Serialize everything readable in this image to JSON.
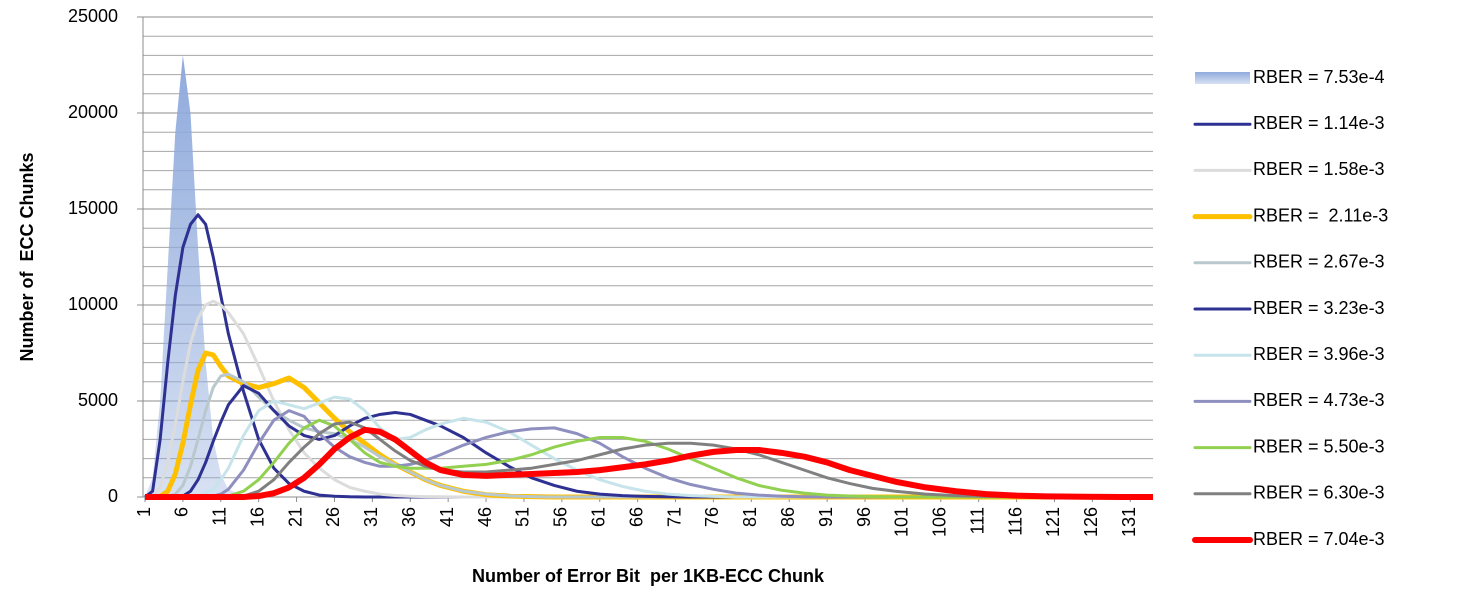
{
  "chart_data": {
    "type": "line",
    "y_label": "Number of  ECC Chunks",
    "x_label": "Number of Error Bit  per 1KB-ECC Chunk",
    "x": [
      1,
      2,
      3,
      4,
      5,
      6,
      7,
      8,
      9,
      10,
      11,
      12,
      14,
      16,
      18,
      20,
      22,
      24,
      26,
      28,
      30,
      32,
      34,
      36,
      38,
      40,
      43,
      46,
      49,
      52,
      55,
      58,
      61,
      64,
      67,
      70,
      73,
      76,
      79,
      82,
      85,
      88,
      91,
      94,
      97,
      100,
      104,
      108,
      112,
      116,
      120,
      125,
      130,
      134
    ],
    "xlim": [
      1,
      134
    ],
    "xticks": [
      1,
      6,
      11,
      16,
      21,
      26,
      31,
      36,
      41,
      46,
      51,
      56,
      61,
      66,
      71,
      76,
      81,
      86,
      91,
      96,
      101,
      106,
      111,
      116,
      121,
      126,
      131
    ],
    "ylim": [
      0,
      25000
    ],
    "yticks": [
      0,
      5000,
      10000,
      15000,
      20000,
      25000
    ],
    "grid": true,
    "minor_grid_step": 1000,
    "legend": "right",
    "series": [
      {
        "name": "RBER = 7.53e-4",
        "color": "#8faadc",
        "style": "area",
        "line_width": 0,
        "values": [
          0,
          1000,
          5000,
          12000,
          19000,
          23000,
          20000,
          13000,
          7000,
          3000,
          1200,
          400,
          50,
          0,
          0,
          0,
          0,
          0,
          0,
          0,
          0,
          0,
          0,
          0,
          0,
          0,
          0,
          0,
          0,
          0,
          0,
          0,
          0,
          0,
          0,
          0,
          0,
          0,
          0,
          0,
          0,
          0,
          0,
          0,
          0,
          0,
          0,
          0,
          0,
          0,
          0,
          0,
          0,
          0
        ]
      },
      {
        "name": "RBER = 1.14e-3",
        "color": "#2e3192",
        "style": "line",
        "line_width": 3,
        "values": [
          0,
          300,
          3000,
          7000,
          10500,
          13000,
          14200,
          14700,
          14200,
          12500,
          10500,
          8500,
          5500,
          3000,
          1500,
          700,
          300,
          100,
          40,
          10,
          0,
          0,
          0,
          0,
          0,
          0,
          0,
          0,
          0,
          0,
          0,
          0,
          0,
          0,
          0,
          0,
          0,
          0,
          0,
          0,
          0,
          0,
          0,
          0,
          0,
          0,
          0,
          0,
          0,
          0,
          0,
          0,
          0,
          0
        ]
      },
      {
        "name": "RBER = 1.58e-3",
        "color": "#dcdcdc",
        "style": "line",
        "line_width": 3,
        "values": [
          0,
          50,
          500,
          1800,
          3800,
          6000,
          8000,
          9300,
          10000,
          10200,
          10000,
          9600,
          8500,
          6800,
          5000,
          3500,
          2300,
          1500,
          900,
          500,
          300,
          150,
          80,
          40,
          20,
          10,
          0,
          0,
          0,
          0,
          0,
          0,
          0,
          0,
          0,
          0,
          0,
          0,
          0,
          0,
          0,
          0,
          0,
          0,
          0,
          0,
          0,
          0,
          0,
          0,
          0,
          0,
          0,
          0
        ]
      },
      {
        "name": "RBER =  2.11e-3",
        "color": "#ffc000",
        "style": "line",
        "line_width": 5,
        "values": [
          0,
          0,
          30,
          300,
          1200,
          2800,
          4800,
          6600,
          7500,
          7400,
          6800,
          6300,
          5900,
          5700,
          5900,
          6200,
          5700,
          4900,
          4100,
          3400,
          2800,
          2200,
          1700,
          1300,
          900,
          600,
          300,
          120,
          50,
          20,
          0,
          0,
          0,
          0,
          0,
          0,
          0,
          0,
          0,
          0,
          0,
          0,
          0,
          0,
          0,
          0,
          0,
          0,
          0,
          0,
          0,
          0,
          0,
          0
        ]
      },
      {
        "name": "RBER = 2.67e-3",
        "color": "#b8c8cc",
        "style": "line",
        "line_width": 3,
        "values": [
          0,
          0,
          0,
          20,
          150,
          600,
          1600,
          3000,
          4500,
          5700,
          6300,
          6400,
          6000,
          5200,
          4500,
          4000,
          3600,
          3400,
          3300,
          3000,
          2600,
          2100,
          1700,
          1300,
          900,
          600,
          300,
          150,
          60,
          20,
          0,
          0,
          0,
          0,
          0,
          0,
          0,
          0,
          0,
          0,
          0,
          0,
          0,
          0,
          0,
          0,
          0,
          0,
          0,
          0,
          0,
          0,
          0,
          0
        ]
      },
      {
        "name": "RBER = 3.23e-3",
        "color": "#2e3192",
        "style": "line",
        "line_width": 3,
        "values": [
          0,
          0,
          0,
          0,
          0,
          50,
          300,
          900,
          1800,
          2900,
          3900,
          4800,
          5800,
          5400,
          4500,
          3700,
          3200,
          3000,
          3200,
          3700,
          4100,
          4300,
          4400,
          4300,
          4000,
          3700,
          3100,
          2300,
          1600,
          1000,
          600,
          300,
          150,
          70,
          30,
          10,
          0,
          0,
          0,
          0,
          0,
          0,
          0,
          0,
          0,
          0,
          0,
          0,
          0,
          0,
          0,
          0,
          0,
          0
        ]
      },
      {
        "name": "RBER = 3.96e-3",
        "color": "#c6e4ea",
        "style": "line",
        "line_width": 3,
        "values": [
          0,
          0,
          0,
          0,
          0,
          0,
          0,
          50,
          200,
          400,
          900,
          1500,
          3200,
          4500,
          5000,
          4800,
          4600,
          4900,
          5200,
          5100,
          4500,
          3600,
          3000,
          3100,
          3500,
          3800,
          4100,
          3900,
          3400,
          2700,
          2000,
          1400,
          900,
          550,
          300,
          150,
          70,
          30,
          0,
          0,
          0,
          0,
          0,
          0,
          0,
          0,
          0,
          0,
          0,
          0,
          0,
          0,
          0,
          0
        ]
      },
      {
        "name": "RBER = 4.73e-3",
        "color": "#8e8fbf",
        "style": "line",
        "line_width": 3,
        "values": [
          0,
          0,
          0,
          0,
          0,
          0,
          0,
          0,
          0,
          50,
          150,
          400,
          1400,
          2800,
          4000,
          4500,
          4200,
          3300,
          2600,
          2100,
          1800,
          1600,
          1600,
          1700,
          1900,
          2200,
          2700,
          3100,
          3400,
          3550,
          3600,
          3300,
          2800,
          2100,
          1500,
          1000,
          650,
          400,
          200,
          100,
          40,
          15,
          0,
          0,
          0,
          0,
          0,
          0,
          0,
          0,
          0,
          0,
          0,
          0
        ]
      },
      {
        "name": "RBER = 5.50e-3",
        "color": "#92d050",
        "style": "line",
        "line_width": 3,
        "values": [
          0,
          0,
          0,
          0,
          0,
          0,
          0,
          0,
          0,
          0,
          0,
          50,
          300,
          900,
          1800,
          2800,
          3600,
          4000,
          3700,
          3000,
          2300,
          1800,
          1600,
          1500,
          1500,
          1500,
          1600,
          1700,
          1900,
          2200,
          2600,
          2900,
          3100,
          3100,
          2900,
          2500,
          2000,
          1500,
          1000,
          600,
          350,
          200,
          100,
          50,
          20,
          0,
          0,
          0,
          0,
          0,
          0,
          0,
          0,
          0
        ]
      },
      {
        "name": "RBER = 6.30e-3",
        "color": "#808080",
        "style": "line",
        "line_width": 3,
        "values": [
          0,
          0,
          0,
          0,
          0,
          0,
          0,
          0,
          0,
          0,
          0,
          0,
          50,
          300,
          900,
          1800,
          2600,
          3300,
          3800,
          3900,
          3600,
          3000,
          2400,
          1900,
          1600,
          1400,
          1300,
          1300,
          1400,
          1500,
          1700,
          1900,
          2200,
          2500,
          2700,
          2800,
          2800,
          2700,
          2500,
          2200,
          1800,
          1400,
          1000,
          700,
          450,
          300,
          150,
          70,
          30,
          10,
          0,
          0,
          0,
          0
        ]
      },
      {
        "name": "RBER = 7.04e-3",
        "color": "#ff0000",
        "style": "line",
        "line_width": 6,
        "values": [
          0,
          0,
          0,
          0,
          0,
          0,
          0,
          0,
          0,
          0,
          0,
          0,
          0,
          50,
          200,
          500,
          1000,
          1700,
          2500,
          3100,
          3500,
          3400,
          3000,
          2400,
          1800,
          1400,
          1150,
          1100,
          1150,
          1200,
          1250,
          1300,
          1400,
          1550,
          1700,
          1900,
          2150,
          2350,
          2450,
          2450,
          2300,
          2100,
          1800,
          1400,
          1100,
          800,
          500,
          300,
          150,
          70,
          30,
          10,
          0,
          0
        ]
      }
    ]
  }
}
